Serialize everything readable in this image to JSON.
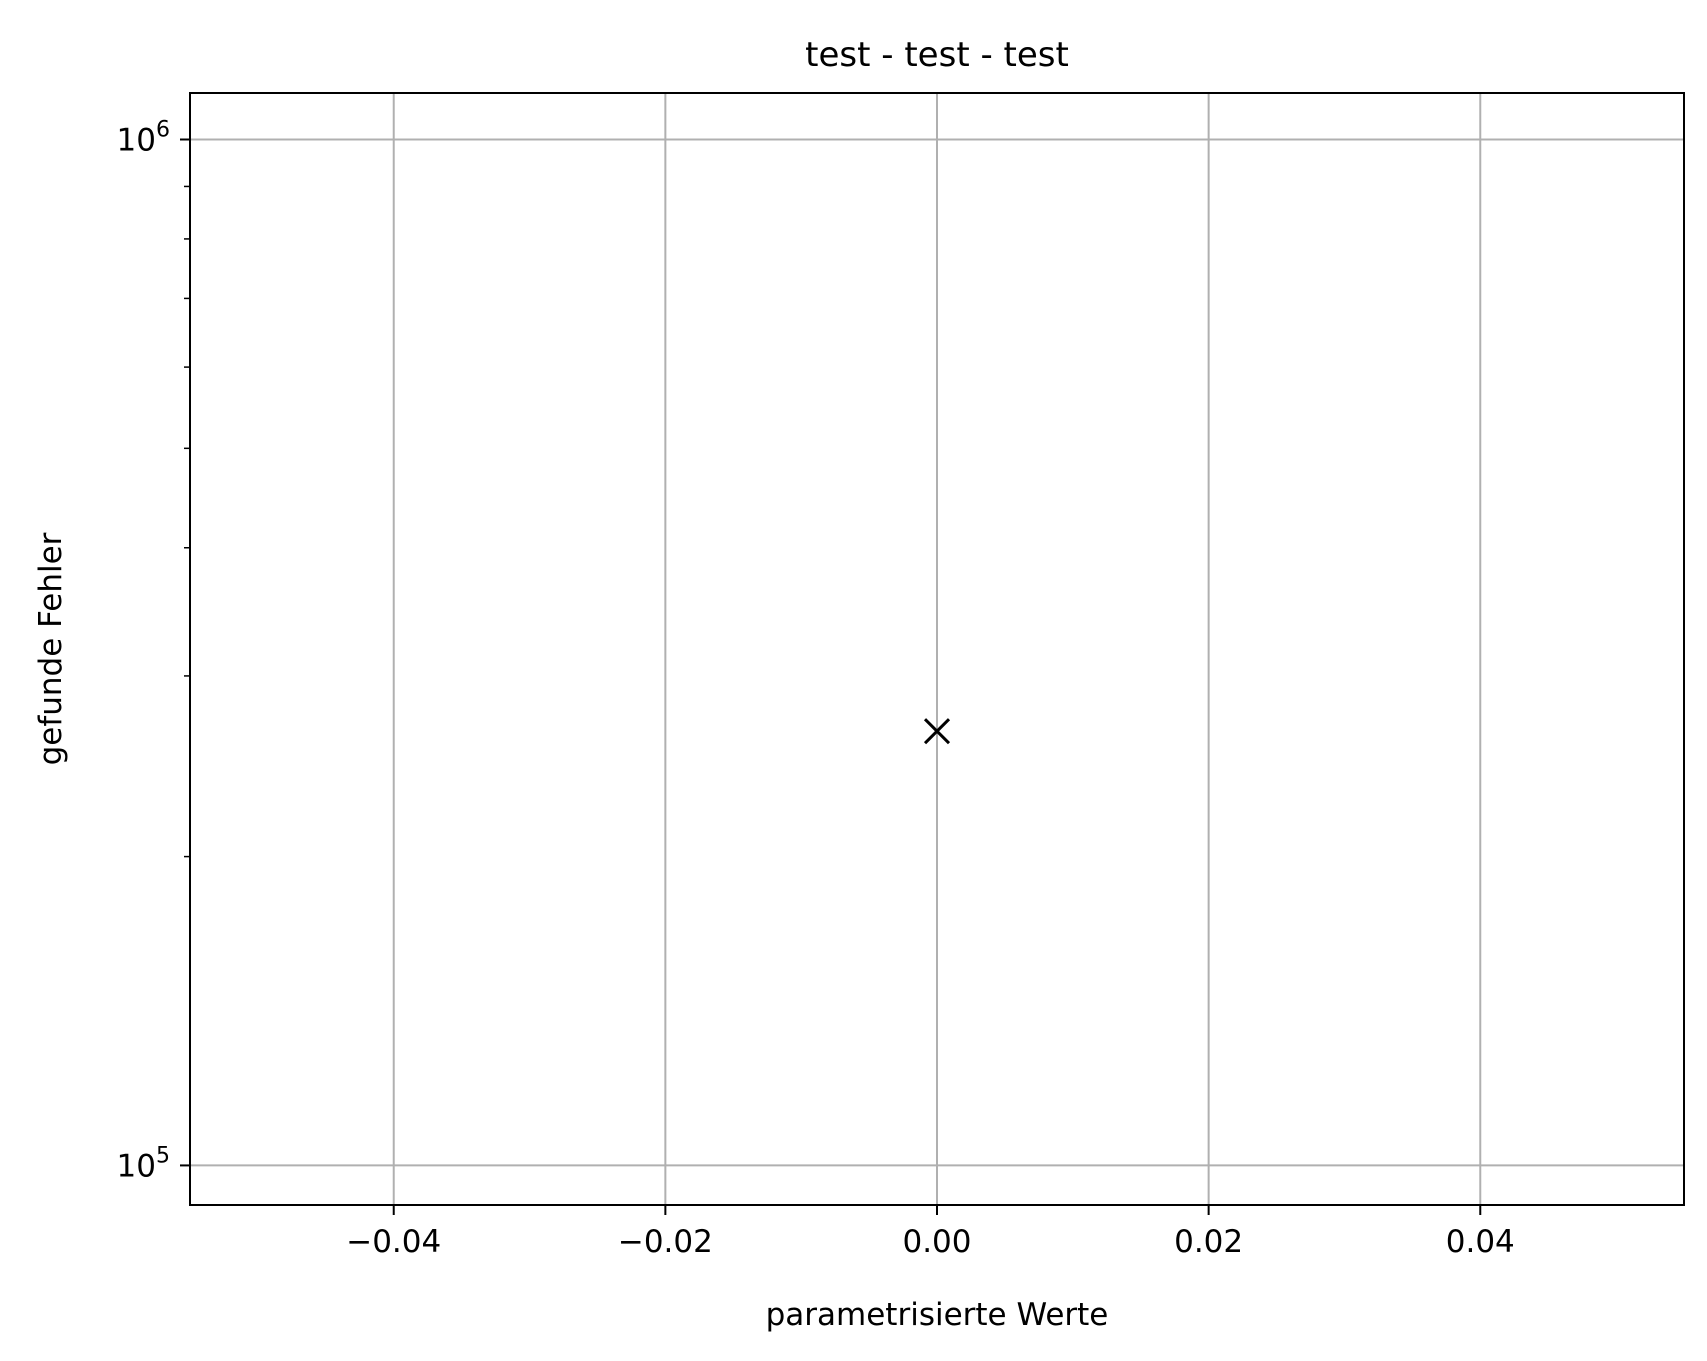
{
  "chart_data": {
    "type": "scatter",
    "title": "test - test - test",
    "xlabel": "parametrisierte Werte",
    "ylabel": "gefunde Fehler",
    "xlim": [
      -0.055,
      0.055
    ],
    "ylim": [
      91500,
      1110000
    ],
    "yscale": "log",
    "grid": true,
    "x_ticks": [
      {
        "value": -0.04,
        "label": "−0.04"
      },
      {
        "value": -0.02,
        "label": "−0.02"
      },
      {
        "value": 0.0,
        "label": "0.00"
      },
      {
        "value": 0.02,
        "label": "0.02"
      },
      {
        "value": 0.04,
        "label": "0.04"
      }
    ],
    "y_ticks": [
      {
        "value": 100000,
        "base": "10",
        "exp": "5"
      },
      {
        "value": 1000000,
        "base": "10",
        "exp": "6"
      }
    ],
    "y_minor_ticks": [
      200000,
      300000,
      400000,
      500000,
      600000,
      700000,
      800000,
      900000
    ],
    "series": [
      {
        "marker": "x",
        "color": "#000000",
        "points": [
          {
            "x": 0.0,
            "y": 265000
          }
        ]
      }
    ],
    "colors": {
      "grid": "#b0b0b0",
      "axes": "#000000",
      "marker": "#000000"
    }
  }
}
